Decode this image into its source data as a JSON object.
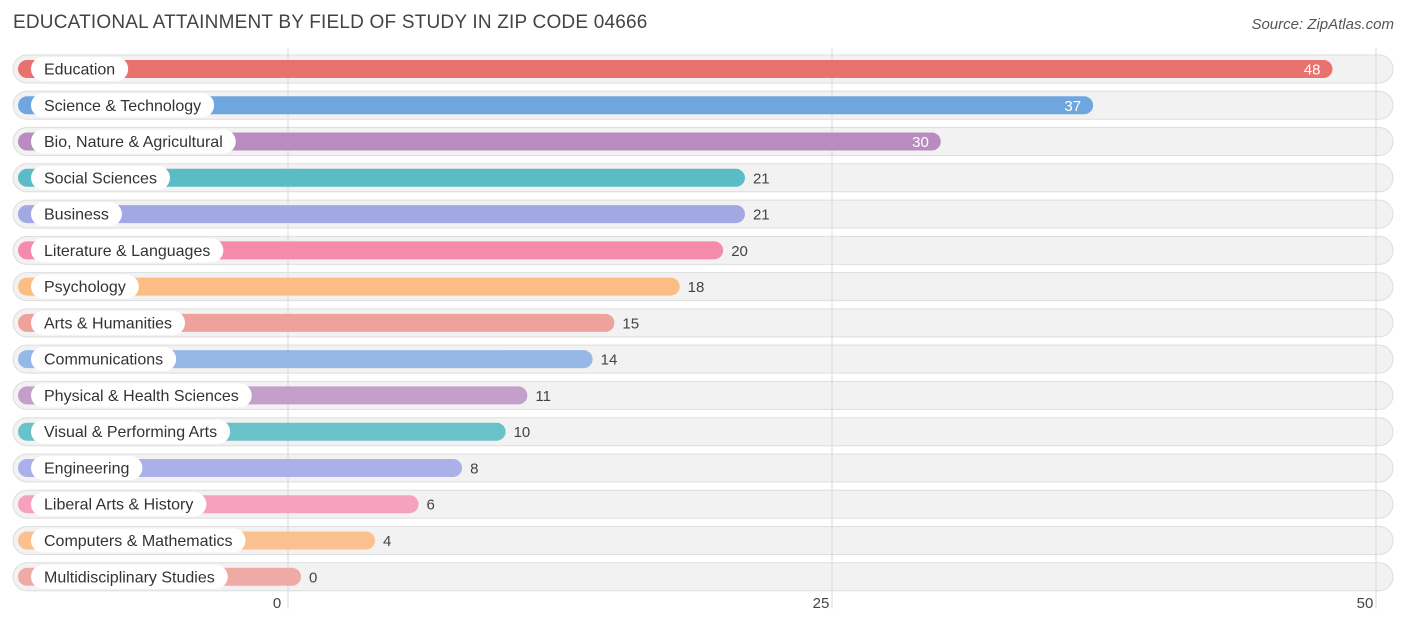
{
  "chart_data": {
    "type": "bar",
    "orientation": "horizontal",
    "title": "EDUCATIONAL ATTAINMENT BY FIELD OF STUDY IN ZIP CODE 04666",
    "source": "Source: ZipAtlas.com",
    "xlim": [
      0,
      50
    ],
    "xticks": [
      0,
      25,
      50
    ],
    "xlabel": "",
    "ylabel": "",
    "grid": true,
    "categories": [
      "Education",
      "Science & Technology",
      "Bio, Nature & Agricultural",
      "Social Sciences",
      "Business",
      "Literature & Languages",
      "Psychology",
      "Arts & Humanities",
      "Communications",
      "Physical & Health Sciences",
      "Visual & Performing Arts",
      "Engineering",
      "Liberal Arts & History",
      "Computers & Mathematics",
      "Multidisciplinary Studies"
    ],
    "values": [
      48,
      37,
      30,
      21,
      21,
      20,
      18,
      15,
      14,
      11,
      10,
      8,
      6,
      4,
      0
    ],
    "colors": [
      "#e8736e",
      "#6fa6de",
      "#b98cc0",
      "#5bbcc5",
      "#a1a8e4",
      "#f48aac",
      "#fbbd84",
      "#eda29c",
      "#95b8e6",
      "#c49fcb",
      "#68c2c8",
      "#aab1e8",
      "#f6a1bd",
      "#fbc08f",
      "#f0aaa5"
    ]
  }
}
